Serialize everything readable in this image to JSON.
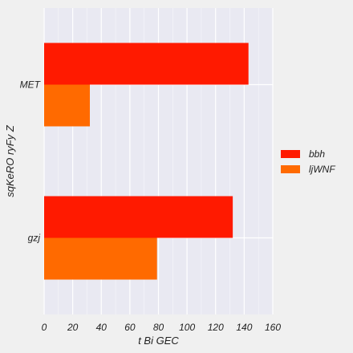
{
  "chart_data": {
    "type": "bar",
    "orientation": "horizontal",
    "categories": [
      "MET",
      "gzj"
    ],
    "series": [
      {
        "name": "bbh",
        "values": [
          143,
          132
        ],
        "color": "#ff1a00"
      },
      {
        "name": "ljWNF",
        "values": [
          32,
          79
        ],
        "color": "#ff6a00"
      }
    ],
    "xlabel": "t Bi GEC",
    "ylabel": "sqKeRO ryFy Z",
    "xlim": [
      0,
      160
    ],
    "x_ticks": [
      0,
      20,
      40,
      60,
      80,
      100,
      120,
      140,
      160
    ],
    "grid": true,
    "legend_position": "right",
    "plot_background": "#e9e9f2",
    "background": "#f0f0f0"
  }
}
